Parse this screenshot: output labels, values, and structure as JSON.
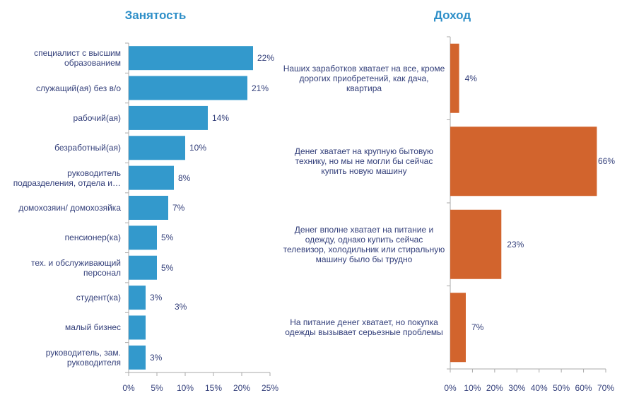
{
  "chart_data": [
    {
      "type": "bar",
      "orientation": "horizontal",
      "title": "Занятость",
      "categories": [
        "специалист с высшим образованием",
        "служащий(ая) без в/о",
        "рабочий(ая)",
        "безработный(ая)",
        "руководитель подразделения, отдела и…",
        "домохозяин/ домохозяйка",
        "пенсионер(ка)",
        "тех. и обслуживающий персонал",
        "студент(ка)",
        "малый бизнес",
        "руководитель, зам. руководителя"
      ],
      "values": [
        22,
        21,
        14,
        10,
        8,
        7,
        5,
        5,
        3,
        3,
        3
      ],
      "value_labels": [
        "22%",
        "21%",
        "14%",
        "10%",
        "8%",
        "7%",
        "5%",
        "5%",
        "3%",
        "3%",
        "3%"
      ],
      "ticks": [
        "0%",
        "5%",
        "10%",
        "15%",
        "20%",
        "25%"
      ],
      "xlim": [
        0,
        25
      ],
      "color": "#3399cc",
      "grid": false
    },
    {
      "type": "bar",
      "orientation": "horizontal",
      "title": "Доход",
      "categories": [
        "Наших заработков хватает на все, кроме дорогих приобретений, как дача, квартира",
        "Денег хватает на крупную бытовую технику, но мы не могли бы сейчас купить новую машину",
        "Денег вполне хватает на питание и одежду, однако купить сейчас телевизор, холодильник или стиральную машину было бы трудно",
        "На питание денег хватает, но покупка одежды вызывает серьезные проблемы"
      ],
      "values": [
        4,
        66,
        23,
        7
      ],
      "value_labels": [
        "4%",
        "66%",
        "23%",
        "7%"
      ],
      "ticks": [
        "0%",
        "10%",
        "20%",
        "30%",
        "40%",
        "50%",
        "60%",
        "70%"
      ],
      "xlim": [
        0,
        70
      ],
      "color": "#d2642d",
      "grid": false
    }
  ]
}
